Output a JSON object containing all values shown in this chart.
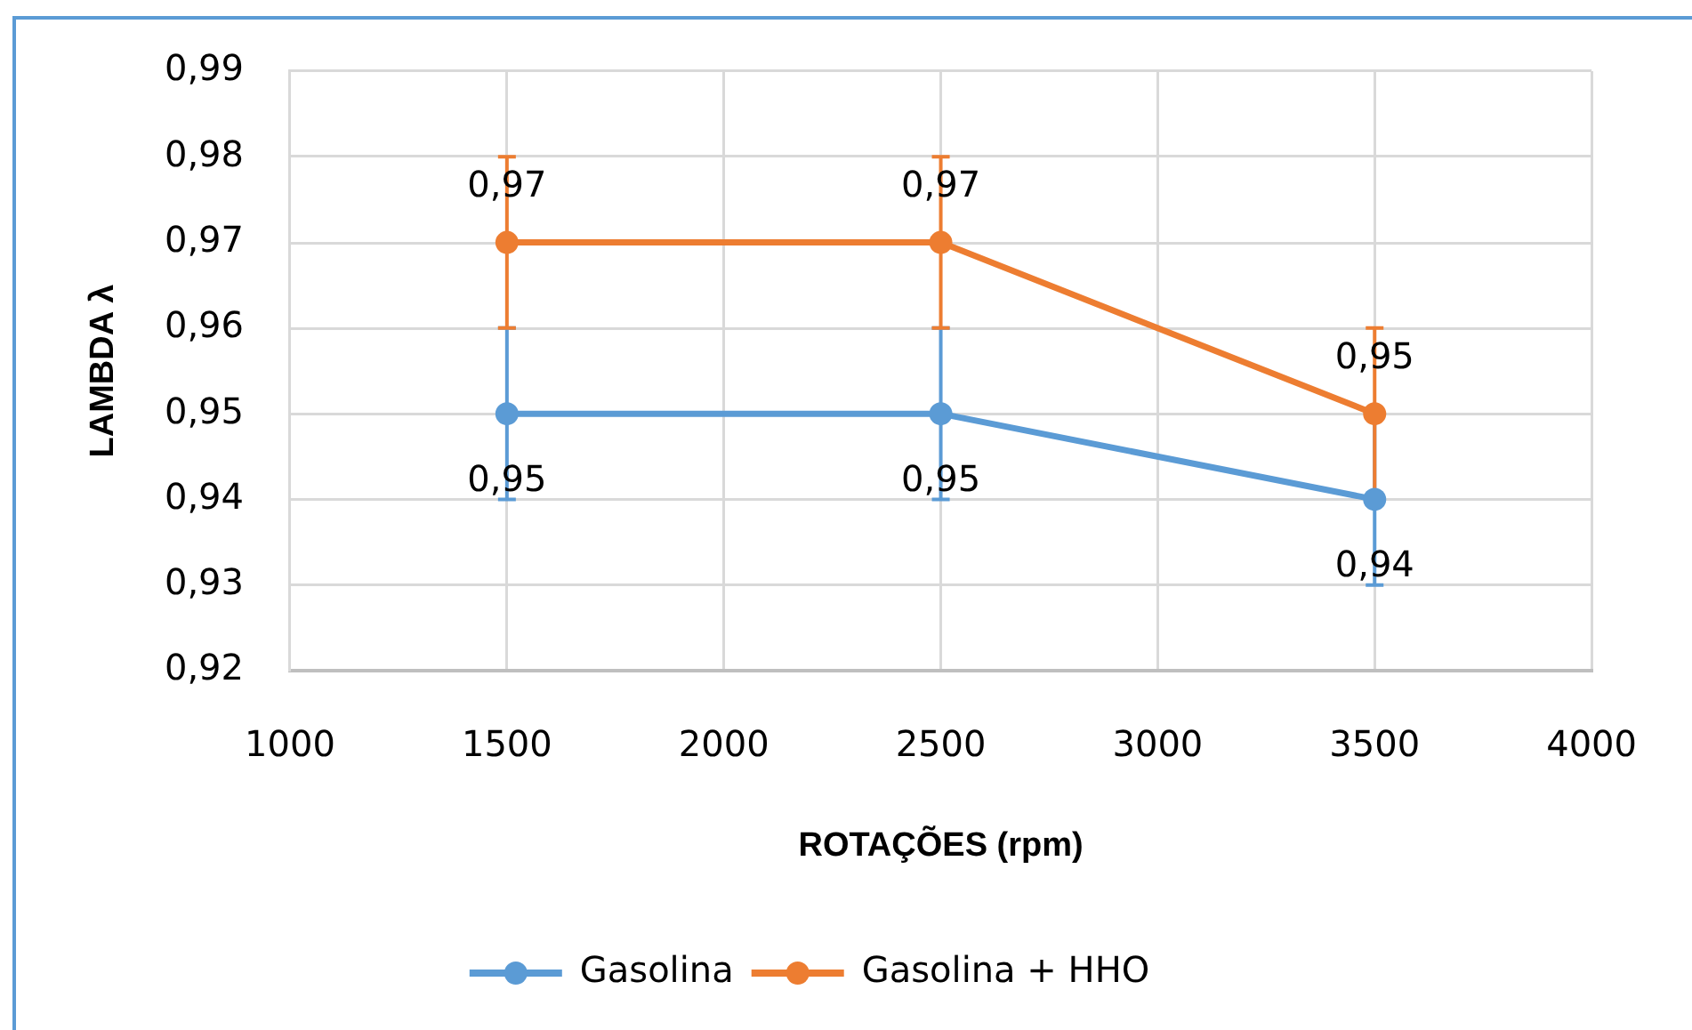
{
  "chart_data": {
    "type": "line",
    "xlabel": "ROTAÇÕES (rpm)",
    "ylabel": "LAMBDA λ",
    "x": [
      1500,
      2500,
      3500
    ],
    "series": [
      {
        "name": "Gasolina",
        "color": "#5b9bd5",
        "values": [
          0.95,
          0.95,
          0.94
        ],
        "errors": [
          0.01,
          0.01,
          0.01
        ],
        "value_labels": [
          "0,95",
          "0,95",
          "0,94"
        ]
      },
      {
        "name": "Gasolina + HHO",
        "color": "#ed7d31",
        "values": [
          0.97,
          0.97,
          0.95
        ],
        "errors": [
          0.01,
          0.01,
          0.01
        ],
        "value_labels": [
          "0,97",
          "0,97",
          "0,95"
        ]
      }
    ],
    "xlim": [
      1000,
      4000
    ],
    "xticks": [
      1000,
      1500,
      2000,
      2500,
      3000,
      3500,
      4000
    ],
    "ylim": [
      0.92,
      0.99
    ],
    "yticks": [
      {
        "value": 0.92,
        "label": "0,92"
      },
      {
        "value": 0.93,
        "label": "0,93"
      },
      {
        "value": 0.94,
        "label": "0,94"
      },
      {
        "value": 0.95,
        "label": "0,95"
      },
      {
        "value": 0.96,
        "label": "0,96"
      },
      {
        "value": 0.97,
        "label": "0,97"
      },
      {
        "value": 0.98,
        "label": "0,98"
      },
      {
        "value": 0.99,
        "label": "0,99"
      }
    ],
    "grid": true,
    "legend": "bottom",
    "marker": "circle",
    "line_style": "solid"
  }
}
